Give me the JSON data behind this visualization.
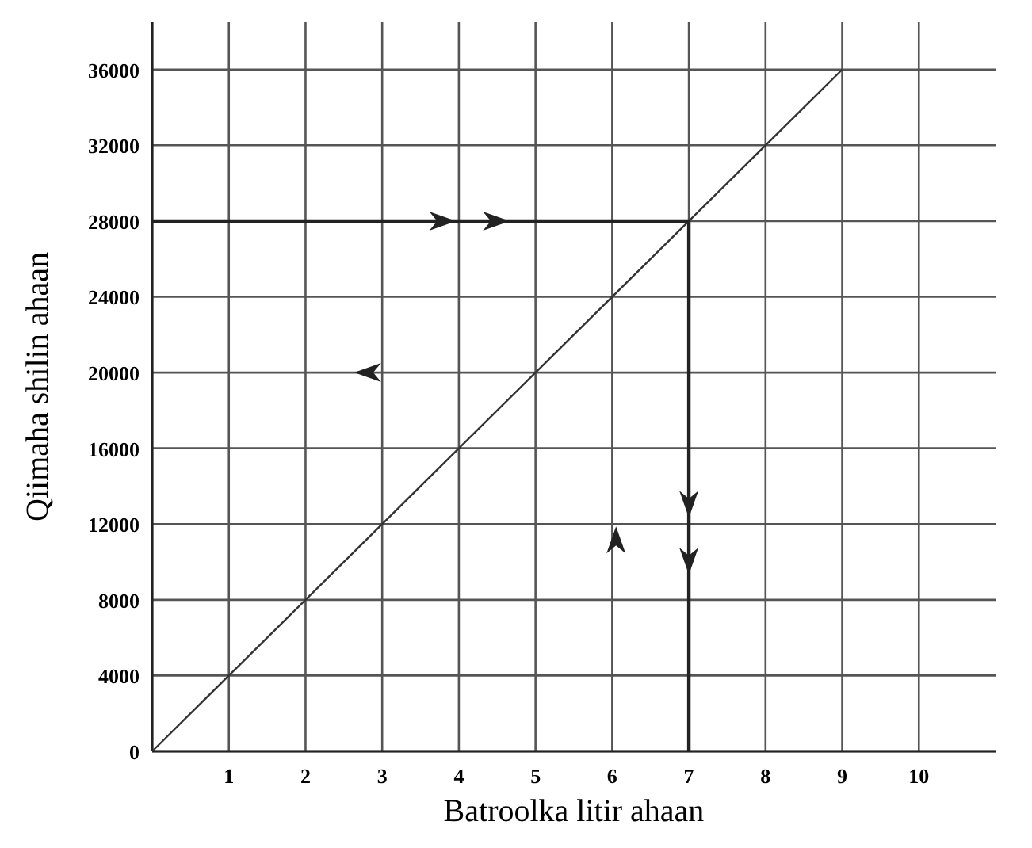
{
  "chart_data": {
    "type": "line",
    "xlabel": "Batroolka litir ahaan",
    "ylabel": "Qiimaha shilin ahaan",
    "xlim": [
      0,
      11
    ],
    "ylim": [
      0,
      38500
    ],
    "xticks": [
      {
        "value": 0,
        "label": null
      },
      1,
      2,
      3,
      4,
      5,
      6,
      7,
      8,
      9,
      10
    ],
    "yticks": [
      0,
      4000,
      8000,
      12000,
      16000,
      20000,
      24000,
      28000,
      32000,
      36000
    ],
    "grid": true,
    "series": [
      {
        "color": "#333333",
        "x": [
          0,
          9
        ],
        "values": [
          0,
          36000
        ]
      },
      {
        "color": "#222222",
        "x": [
          0,
          7,
          7
        ],
        "values": [
          28000,
          28000,
          0
        ]
      }
    ]
  }
}
